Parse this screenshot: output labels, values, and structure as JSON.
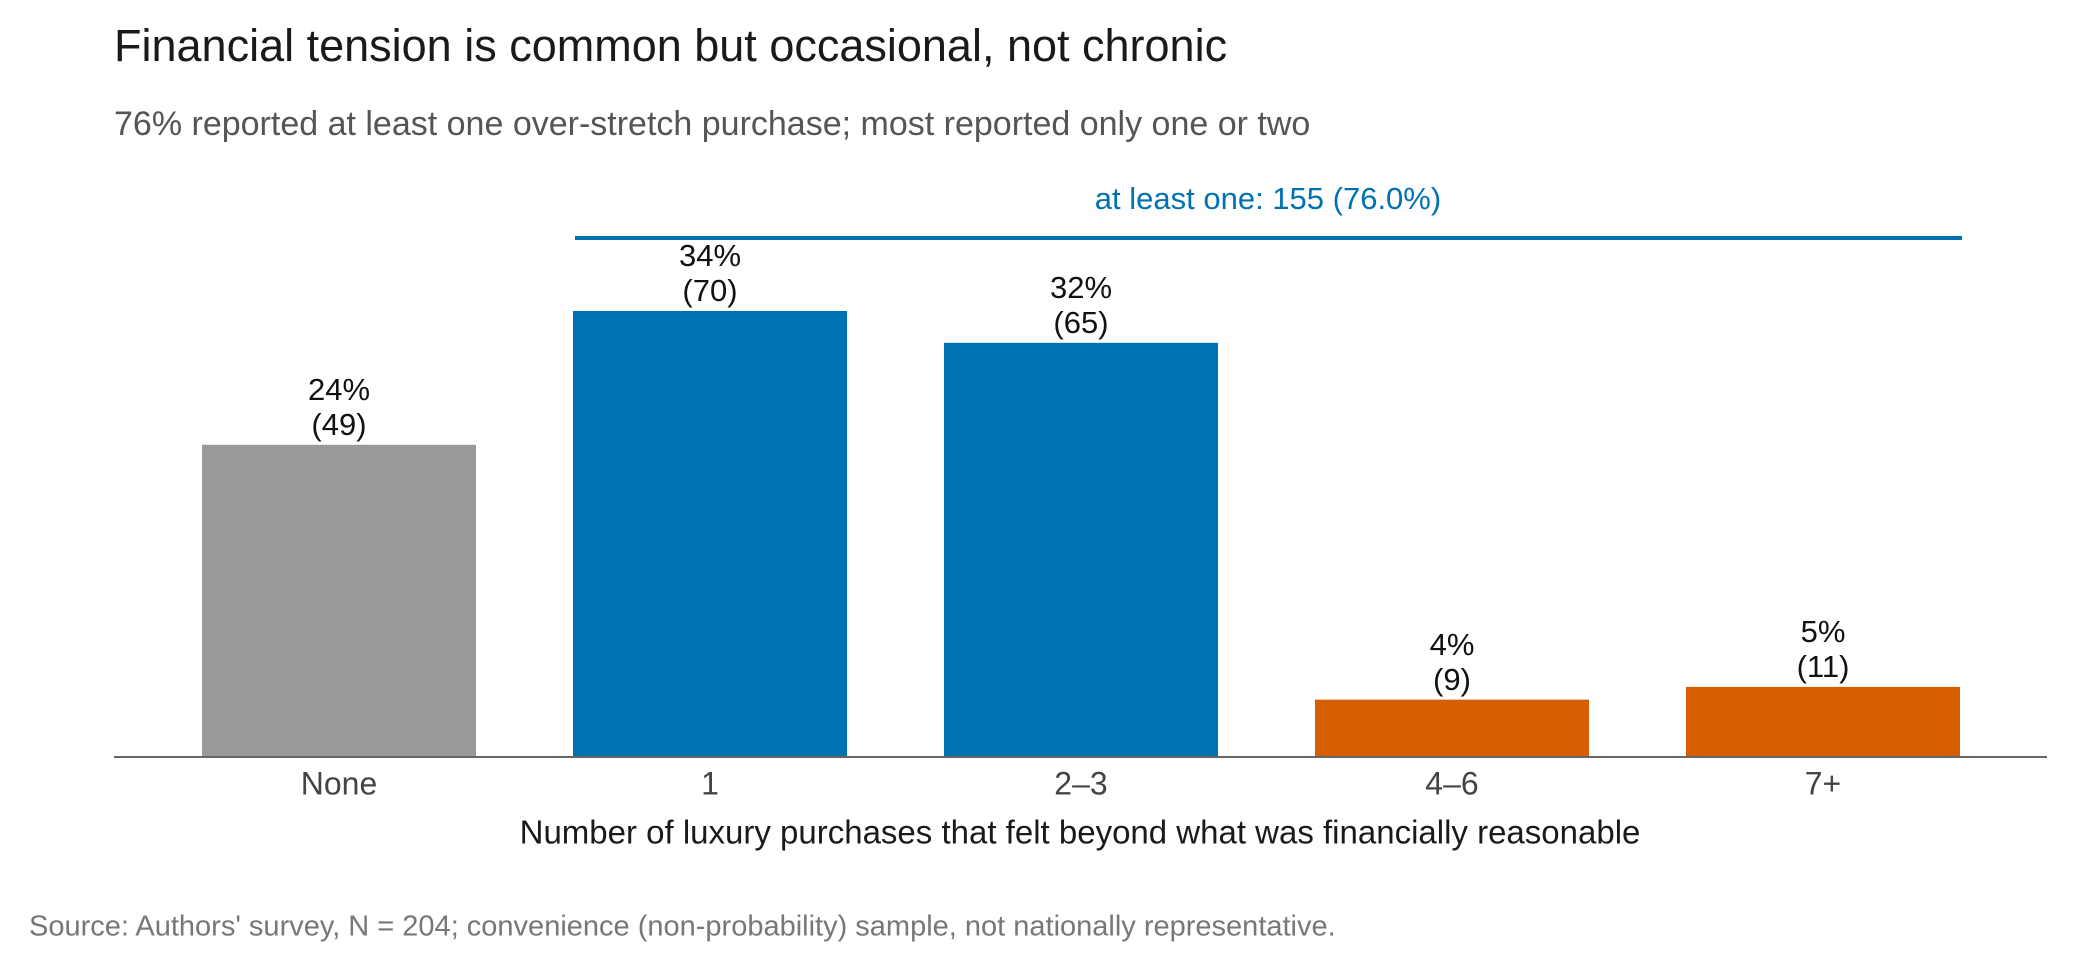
{
  "chart_data": {
    "type": "bar",
    "title": "Financial tension is common but occasional, not chronic",
    "subtitle": "76% reported at least one over-stretch purchase; most reported only one or two",
    "annotation": "at least one: 155 (76.0%)",
    "categories": [
      "None",
      "1",
      "2–3",
      "4–6",
      "7+"
    ],
    "values": [
      49,
      70,
      65,
      9,
      11
    ],
    "value_labels": [
      "(49)",
      "(70)",
      "(65)",
      "(9)",
      "(11)"
    ],
    "percents": [
      24,
      34,
      32,
      4,
      5
    ],
    "percent_labels": [
      "24%",
      "34%",
      "32%",
      "4%",
      "5%"
    ],
    "colors": [
      "#999999",
      "#0072b2",
      "#0072b2",
      "#d55e00",
      "#d55e00"
    ],
    "x_label": "Number of luxury purchases that felt beyond what was financially reasonable",
    "source": "Source: Authors' survey, N = 204; convenience (non-probability) sample, not nationally representative."
  }
}
